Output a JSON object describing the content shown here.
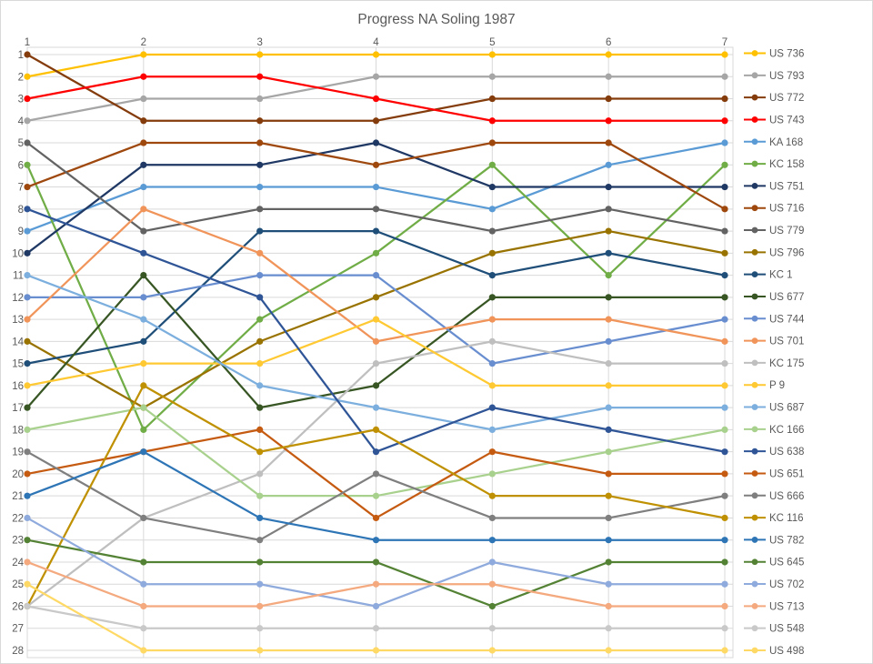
{
  "chart_data": {
    "type": "line",
    "subtype": "bump-rank-progression",
    "title": "Progress NA Soling 1987",
    "xlabel": "",
    "ylabel": "",
    "x_labels": [
      "1",
      "2",
      "3",
      "4",
      "5",
      "6",
      "7"
    ],
    "y_labels": [
      "1",
      "2",
      "3",
      "4",
      "5",
      "6",
      "7",
      "8",
      "9",
      "10",
      "11",
      "12",
      "13",
      "14",
      "15",
      "16",
      "17",
      "18",
      "19",
      "20",
      "21",
      "22",
      "23",
      "24",
      "25",
      "26",
      "27",
      "28"
    ],
    "ylim": [
      1,
      28
    ],
    "y_inverted": true,
    "grid": true,
    "legend_position": "right",
    "axis_color": "#595959",
    "grid_color": "#D9D9D9",
    "series": [
      {
        "name": "US 736",
        "color": "#FFC000",
        "ranks": [
          2,
          1,
          1,
          1,
          1,
          1,
          1
        ]
      },
      {
        "name": "US 793",
        "color": "#A6A6A6",
        "ranks": [
          4,
          3,
          3,
          2,
          2,
          2,
          2
        ]
      },
      {
        "name": "US 772",
        "color": "#843C0C",
        "ranks": [
          1,
          4,
          4,
          4,
          3,
          3,
          3
        ]
      },
      {
        "name": "US 743",
        "color": "#FF0000",
        "ranks": [
          3,
          2,
          2,
          3,
          4,
          4,
          4
        ]
      },
      {
        "name": "KA 168",
        "color": "#5B9BD5",
        "ranks": [
          9,
          7,
          7,
          7,
          8,
          6,
          5
        ]
      },
      {
        "name": "KC 158",
        "color": "#70AD47",
        "ranks": [
          6,
          18,
          13,
          10,
          6,
          11,
          6
        ]
      },
      {
        "name": "US 751",
        "color": "#1F3864",
        "ranks": [
          10,
          6,
          6,
          5,
          7,
          7,
          7
        ]
      },
      {
        "name": "US 716",
        "color": "#9E480E",
        "ranks": [
          7,
          5,
          5,
          6,
          5,
          5,
          8
        ]
      },
      {
        "name": "US 779",
        "color": "#636363",
        "ranks": [
          5,
          9,
          8,
          8,
          9,
          8,
          9
        ]
      },
      {
        "name": "US 796",
        "color": "#997300",
        "ranks": [
          14,
          17,
          14,
          12,
          10,
          9,
          10
        ]
      },
      {
        "name": "KC 1",
        "color": "#1F4E79",
        "ranks": [
          15,
          14,
          9,
          9,
          11,
          10,
          11
        ]
      },
      {
        "name": "US 677",
        "color": "#375623",
        "ranks": [
          17,
          11,
          17,
          16,
          12,
          12,
          12
        ]
      },
      {
        "name": "US 744",
        "color": "#698ED0",
        "ranks": [
          12,
          12,
          11,
          11,
          15,
          14,
          13
        ]
      },
      {
        "name": "US 701",
        "color": "#F0945A",
        "ranks": [
          13,
          8,
          10,
          14,
          13,
          13,
          14
        ]
      },
      {
        "name": "KC 175",
        "color": "#BFBFBF",
        "ranks": [
          26,
          22,
          20,
          15,
          14,
          15,
          15
        ]
      },
      {
        "name": "P 9",
        "color": "#FFC933",
        "ranks": [
          16,
          15,
          15,
          13,
          16,
          16,
          16
        ]
      },
      {
        "name": "US 687",
        "color": "#7CAFDE",
        "ranks": [
          11,
          13,
          16,
          17,
          18,
          17,
          17
        ]
      },
      {
        "name": "KC 166",
        "color": "#A9D18E",
        "ranks": [
          18,
          17,
          21,
          21,
          20,
          19,
          18
        ]
      },
      {
        "name": "US 638",
        "color": "#2F5597",
        "ranks": [
          8,
          10,
          12,
          19,
          17,
          18,
          19
        ]
      },
      {
        "name": "US 651",
        "color": "#C55A11",
        "ranks": [
          20,
          19,
          18,
          22,
          19,
          20,
          20
        ]
      },
      {
        "name": "US 666",
        "color": "#7F7F7F",
        "ranks": [
          19,
          22,
          23,
          20,
          22,
          22,
          21
        ]
      },
      {
        "name": "KC 116",
        "color": "#BF9000",
        "ranks": [
          26,
          16,
          19,
          18,
          21,
          21,
          22
        ]
      },
      {
        "name": "US 782",
        "color": "#2E75B6",
        "ranks": [
          21,
          19,
          22,
          23,
          23,
          23,
          23
        ]
      },
      {
        "name": "US 645",
        "color": "#548235",
        "ranks": [
          23,
          24,
          24,
          24,
          26,
          24,
          24
        ]
      },
      {
        "name": "US 702",
        "color": "#8FAADC",
        "ranks": [
          22,
          25,
          25,
          26,
          24,
          25,
          25
        ]
      },
      {
        "name": "US 713",
        "color": "#F4A97E",
        "ranks": [
          24,
          26,
          26,
          25,
          25,
          26,
          26
        ]
      },
      {
        "name": "US 548",
        "color": "#C9C9C9",
        "ranks": [
          26,
          27,
          27,
          27,
          27,
          27,
          27
        ]
      },
      {
        "name": "US 498",
        "color": "#FFD966",
        "ranks": [
          25,
          28,
          28,
          28,
          28,
          28,
          28
        ]
      }
    ]
  }
}
